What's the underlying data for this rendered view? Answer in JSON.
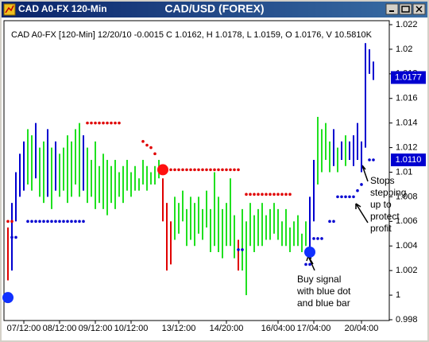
{
  "window": {
    "title": "CAD A0-FX 120-Min"
  },
  "chart_data": {
    "type": "range-bar",
    "title": "CAD/USD (FOREX)",
    "info": "CAD A0-FX [120-Min] 12/20/10  -0.0015 C 1.0162, H 1.0178, L 1.0159, O 1.0176, V 10.5810K",
    "xlim": [
      -1,
      96
    ],
    "xticks": [
      {
        "value": 4,
        "label": "07/12:00"
      },
      {
        "value": 13,
        "label": "08/12:00"
      },
      {
        "value": 22,
        "label": "09/12:00"
      },
      {
        "value": 31,
        "label": "10/12:00"
      },
      {
        "value": 43,
        "label": "13/12:00"
      },
      {
        "value": 55,
        "label": "14/20:00"
      },
      {
        "value": 68,
        "label": "16/04:00"
      },
      {
        "value": 77,
        "label": "17/04:00"
      },
      {
        "value": 89,
        "label": "20/04:00"
      }
    ],
    "ylim": [
      0.998,
      1.022
    ],
    "yticks": [
      0.998,
      1,
      1.002,
      1.004,
      1.006,
      1.008,
      1.01,
      1.012,
      1.014,
      1.016,
      1.018,
      1.02,
      1.022
    ],
    "bar_groups": [
      {
        "color": "#e00000",
        "x": [
          0,
          39,
          40,
          41,
          58
        ],
        "high": [
          1.0055,
          1.0095,
          1.0075,
          1.006,
          1.0045
        ],
        "low": [
          1.0012,
          1.006,
          1.002,
          1.0025,
          1.002
        ]
      },
      {
        "color": "#0000d0",
        "x": [
          1,
          2,
          3,
          4,
          7,
          10,
          12,
          19,
          76,
          77,
          82,
          84,
          86,
          87,
          88,
          89,
          90,
          91,
          92
        ],
        "high": [
          1.0075,
          1.01,
          1.0115,
          1.0125,
          1.014,
          1.0135,
          1.0125,
          1.013,
          1.008,
          1.011,
          1.0135,
          1.0125,
          1.0125,
          1.013,
          1.014,
          1.0125,
          1.0205,
          1.02,
          1.019
        ],
        "low": [
          1.002,
          1.006,
          1.008,
          1.0085,
          1.0095,
          1.008,
          1.0085,
          1.0085,
          1.0035,
          1.006,
          1.0105,
          1.011,
          1.011,
          1.0105,
          1.011,
          1.01,
          1.012,
          1.018,
          1.0175
        ]
      },
      {
        "color": "#20e020",
        "x": [
          5,
          6,
          8,
          9,
          11,
          13,
          14,
          15,
          16,
          17,
          18,
          20,
          21,
          22,
          23,
          24,
          25,
          26,
          27,
          28,
          29,
          30,
          31,
          32,
          33,
          34,
          35,
          36,
          37,
          38,
          42,
          43,
          44,
          45,
          46,
          47,
          48,
          49,
          50,
          51,
          52,
          53,
          54,
          55,
          56,
          57,
          59,
          60,
          61,
          62,
          63,
          64,
          65,
          66,
          67,
          68,
          69,
          70,
          71,
          72,
          73,
          74,
          75,
          78,
          79,
          80,
          81,
          83,
          85
        ],
        "high": [
          1.0135,
          1.013,
          1.012,
          1.0125,
          1.012,
          1.0115,
          1.012,
          1.013,
          1.0125,
          1.0135,
          1.014,
          1.012,
          1.011,
          1.0125,
          1.0105,
          1.0115,
          1.011,
          1.0105,
          1.011,
          1.01,
          1.0105,
          1.011,
          1.01,
          1.0105,
          1.0095,
          1.011,
          1.0105,
          1.01,
          1.0105,
          1.011,
          1.008,
          1.0075,
          1.0085,
          1.007,
          1.008,
          1.0075,
          1.008,
          1.007,
          1.0085,
          1.007,
          1.01,
          1.008,
          1.007,
          1.0075,
          1.0095,
          1.0065,
          1.007,
          1.006,
          1.0075,
          1.0065,
          1.007,
          1.0075,
          1.0065,
          1.007,
          1.0075,
          1.007,
          1.006,
          1.007,
          1.0055,
          1.006,
          1.0065,
          1.005,
          1.006,
          1.0145,
          1.0135,
          1.014,
          1.0125,
          1.012,
          1.013
        ],
        "low": [
          1.009,
          1.0085,
          1.008,
          1.0075,
          1.007,
          1.008,
          1.0085,
          1.0075,
          1.008,
          1.009,
          1.008,
          1.0075,
          1.008,
          1.007,
          1.0075,
          1.007,
          1.0065,
          1.0075,
          1.007,
          1.008,
          1.0075,
          1.0085,
          1.008,
          1.0085,
          1.0085,
          1.009,
          1.0085,
          1.009,
          1.009,
          1.0095,
          1.0045,
          1.005,
          1.006,
          1.004,
          1.0045,
          1.004,
          1.005,
          1.0045,
          1.0055,
          1.0035,
          1.004,
          1.0035,
          1.003,
          1.004,
          1.004,
          1.003,
          1.002,
          1,
          1.004,
          1.0035,
          1.004,
          1.004,
          1.0045,
          1.0045,
          1.005,
          1.0045,
          1.004,
          1.004,
          1.0035,
          1.004,
          1.004,
          1.0035,
          1.004,
          1.009,
          1.01,
          1.011,
          1.01,
          1.01,
          1.0105
        ]
      }
    ],
    "dots": [
      {
        "color": "#e00000",
        "x": [
          0,
          1,
          20,
          21,
          22,
          23,
          24,
          25,
          26,
          27,
          28,
          34,
          35,
          36,
          37,
          41,
          42,
          43,
          44,
          45,
          46,
          47,
          48,
          49,
          50,
          51,
          52,
          53,
          54,
          55,
          56,
          57,
          58,
          60,
          61,
          62,
          63,
          64,
          65,
          66,
          67,
          68,
          69,
          70,
          71
        ],
        "values": [
          1.006,
          1.006,
          1.014,
          1.014,
          1.014,
          1.014,
          1.014,
          1.014,
          1.014,
          1.014,
          1.014,
          1.0125,
          1.0122,
          1.012,
          1.0115,
          1.0102,
          1.0102,
          1.0102,
          1.0102,
          1.0102,
          1.0102,
          1.0102,
          1.0102,
          1.0102,
          1.0102,
          1.0102,
          1.0102,
          1.0102,
          1.0102,
          1.0102,
          1.0102,
          1.0102,
          1.0102,
          1.0082,
          1.0082,
          1.0082,
          1.0082,
          1.0082,
          1.0082,
          1.0082,
          1.0082,
          1.0082,
          1.0082,
          1.0082,
          1.0082
        ]
      },
      {
        "color": "#0000d0",
        "x": [
          1,
          2,
          5,
          6,
          7,
          8,
          9,
          10,
          11,
          12,
          13,
          14,
          15,
          16,
          17,
          18,
          19,
          58,
          59,
          75,
          76,
          77,
          78,
          79,
          81,
          82,
          83,
          84,
          85,
          86,
          87,
          88,
          89,
          91,
          92
        ],
        "values": [
          1.0047,
          1.0047,
          1.006,
          1.006,
          1.006,
          1.006,
          1.006,
          1.006,
          1.006,
          1.006,
          1.006,
          1.006,
          1.006,
          1.006,
          1.006,
          1.006,
          1.006,
          1.0037,
          1.0037,
          1.0025,
          1.0025,
          1.0046,
          1.0046,
          1.0046,
          1.006,
          1.006,
          1.008,
          1.008,
          1.008,
          1.008,
          1.008,
          1.0085,
          1.009,
          1.011,
          1.011
        ]
      }
    ],
    "signals": [
      {
        "color": "#1030ff",
        "x": [
          0,
          76
        ],
        "values": [
          0.9998,
          1.0035
        ]
      },
      {
        "color": "#ff1010",
        "x": [
          39
        ],
        "values": [
          1.0102
        ]
      }
    ],
    "price_labels": [
      {
        "value": 1.0177,
        "label": "1.0177"
      },
      {
        "value": 1.011,
        "label": "1.0110"
      }
    ],
    "annotations": [
      {
        "lines": [
          "Buy signal",
          "with blue dot",
          "and blue bar"
        ]
      },
      {
        "lines": [
          "Stops",
          "stepping",
          "up to",
          "protect",
          "profit"
        ]
      }
    ]
  }
}
